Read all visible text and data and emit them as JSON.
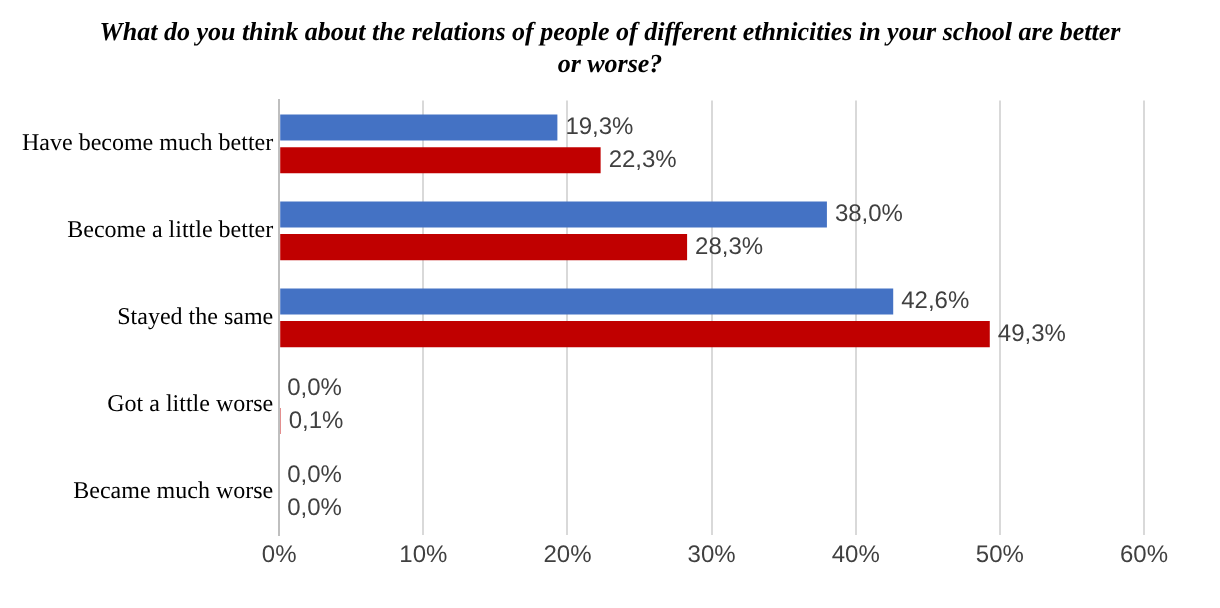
{
  "chart_data": {
    "type": "bar",
    "orientation": "horizontal",
    "title": "What do you think about the relations of people of different ethnicities in your school are better or worse?",
    "categories": [
      "Have become much better",
      "Become a little better",
      "Stayed the same",
      "Got a little worse",
      "Became much worse"
    ],
    "series": [
      {
        "color": "#4472c4",
        "values": [
          19.3,
          38.0,
          42.6,
          0.0,
          0.0
        ],
        "value_labels": [
          "19,3%",
          "38,0%",
          "42,6%",
          "0,0%",
          "0,0%"
        ]
      },
      {
        "color": "#c00000",
        "values": [
          22.3,
          28.3,
          49.3,
          0.1,
          0.0
        ],
        "value_labels": [
          "22,3%",
          "28,3%",
          "49,3%",
          "0,1%",
          "0,0%"
        ]
      }
    ],
    "xlim": [
      0,
      60
    ],
    "xticks": [
      {
        "value": 0,
        "label": "0%"
      },
      {
        "value": 10,
        "label": "10%"
      },
      {
        "value": 20,
        "label": "20%"
      },
      {
        "value": 30,
        "label": "30%"
      },
      {
        "value": 40,
        "label": "40%"
      },
      {
        "value": 50,
        "label": "50%"
      },
      {
        "value": 60,
        "label": "60%"
      }
    ],
    "grid": "x",
    "legend": false
  }
}
